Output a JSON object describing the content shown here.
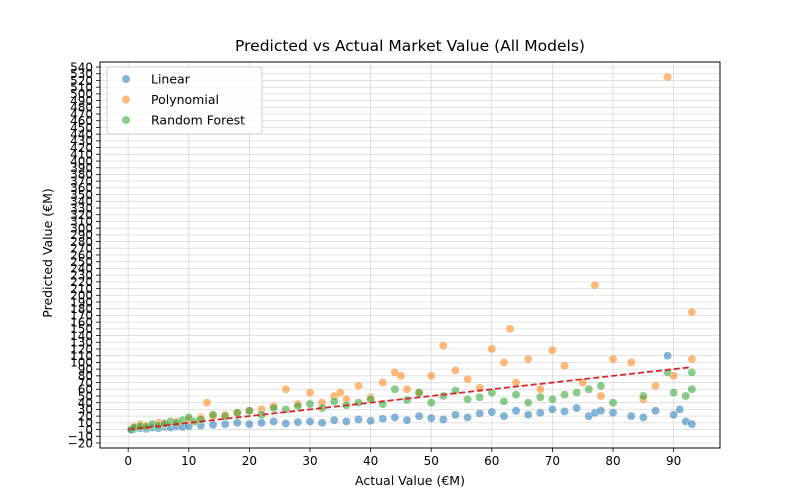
{
  "chart_data": {
    "type": "scatter",
    "title": "Predicted vs Actual Market Value (All Models)",
    "xlabel": "Actual Value (€M)",
    "ylabel": "Predicted Value (€M)",
    "xlim": [
      -4.65,
      97.65
    ],
    "ylim": [
      -27.5,
      547.5
    ],
    "xticks": [
      0,
      10,
      20,
      30,
      40,
      50,
      60,
      70,
      80,
      90
    ],
    "yticks": [
      -20,
      -10,
      0,
      10,
      20,
      30,
      40,
      50,
      60,
      70,
      80,
      90,
      100,
      110,
      120,
      130,
      140,
      150,
      160,
      170,
      180,
      190,
      200,
      210,
      220,
      230,
      240,
      250,
      260,
      270,
      280,
      290,
      300,
      310,
      320,
      330,
      340,
      350,
      360,
      370,
      380,
      390,
      400,
      410,
      420,
      430,
      440,
      450,
      460,
      470,
      480,
      490,
      500,
      510,
      520,
      530,
      540
    ],
    "grid": true,
    "legend_position": "top-left",
    "reference_line": {
      "from": [
        0,
        0
      ],
      "to": [
        93,
        93
      ],
      "color": "#d62728",
      "style": "dashed"
    },
    "series": [
      {
        "name": "Linear",
        "color": "#1f77b4",
        "x": [
          0.5,
          1,
          2,
          3,
          4,
          5,
          6,
          7,
          8,
          9,
          10,
          12,
          14,
          16,
          18,
          20,
          22,
          24,
          26,
          28,
          30,
          32,
          34,
          36,
          38,
          40,
          42,
          44,
          46,
          48,
          50,
          52,
          54,
          56,
          58,
          60,
          62,
          64,
          66,
          68,
          70,
          72,
          74,
          76,
          77,
          78,
          80,
          83,
          85,
          87,
          89,
          90,
          91,
          92,
          93
        ],
        "y": [
          0,
          1,
          2,
          1,
          3,
          2,
          4,
          3,
          5,
          4,
          5,
          6,
          7,
          8,
          10,
          8,
          10,
          12,
          9,
          11,
          12,
          10,
          14,
          12,
          15,
          13,
          16,
          18,
          14,
          20,
          17,
          15,
          22,
          18,
          24,
          26,
          20,
          28,
          22,
          25,
          30,
          27,
          32,
          20,
          25,
          28,
          25,
          20,
          18,
          28,
          110,
          22,
          30,
          12,
          8
        ]
      },
      {
        "name": "Polynomial",
        "color": "#ff7f0e",
        "x": [
          1,
          2,
          3,
          5,
          6,
          8,
          10,
          12,
          13,
          14,
          16,
          18,
          20,
          22,
          24,
          26,
          28,
          30,
          32,
          34,
          35,
          36,
          38,
          40,
          42,
          44,
          45,
          46,
          48,
          50,
          52,
          54,
          56,
          58,
          60,
          62,
          63,
          64,
          66,
          68,
          70,
          72,
          75,
          77,
          78,
          80,
          83,
          85,
          87,
          89,
          90,
          93,
          93
        ],
        "y": [
          5,
          8,
          6,
          10,
          8,
          12,
          15,
          18,
          40,
          20,
          22,
          25,
          28,
          30,
          35,
          60,
          38,
          55,
          40,
          50,
          55,
          45,
          65,
          48,
          70,
          85,
          80,
          60,
          55,
          80,
          125,
          88,
          75,
          62,
          120,
          100,
          150,
          70,
          105,
          60,
          118,
          95,
          70,
          215,
          50,
          105,
          100,
          45,
          65,
          525,
          80,
          175,
          105
        ]
      },
      {
        "name": "Random Forest",
        "color": "#2ca02c",
        "x": [
          0.5,
          1,
          2,
          3,
          4,
          5,
          6,
          7,
          8,
          9,
          10,
          11,
          12,
          14,
          16,
          18,
          20,
          22,
          24,
          26,
          28,
          30,
          32,
          34,
          36,
          38,
          40,
          42,
          44,
          46,
          48,
          50,
          52,
          54,
          56,
          58,
          60,
          62,
          64,
          66,
          68,
          70,
          72,
          74,
          76,
          78,
          80,
          85,
          89,
          90,
          92,
          93,
          93
        ],
        "y": [
          0,
          3,
          5,
          4,
          8,
          6,
          9,
          12,
          10,
          14,
          18,
          12,
          15,
          22,
          20,
          25,
          28,
          22,
          32,
          30,
          35,
          38,
          32,
          42,
          36,
          40,
          45,
          38,
          60,
          44,
          55,
          40,
          50,
          58,
          45,
          48,
          55,
          42,
          52,
          40,
          48,
          45,
          52,
          55,
          60,
          65,
          40,
          50,
          85,
          55,
          50,
          85,
          60
        ]
      }
    ]
  }
}
